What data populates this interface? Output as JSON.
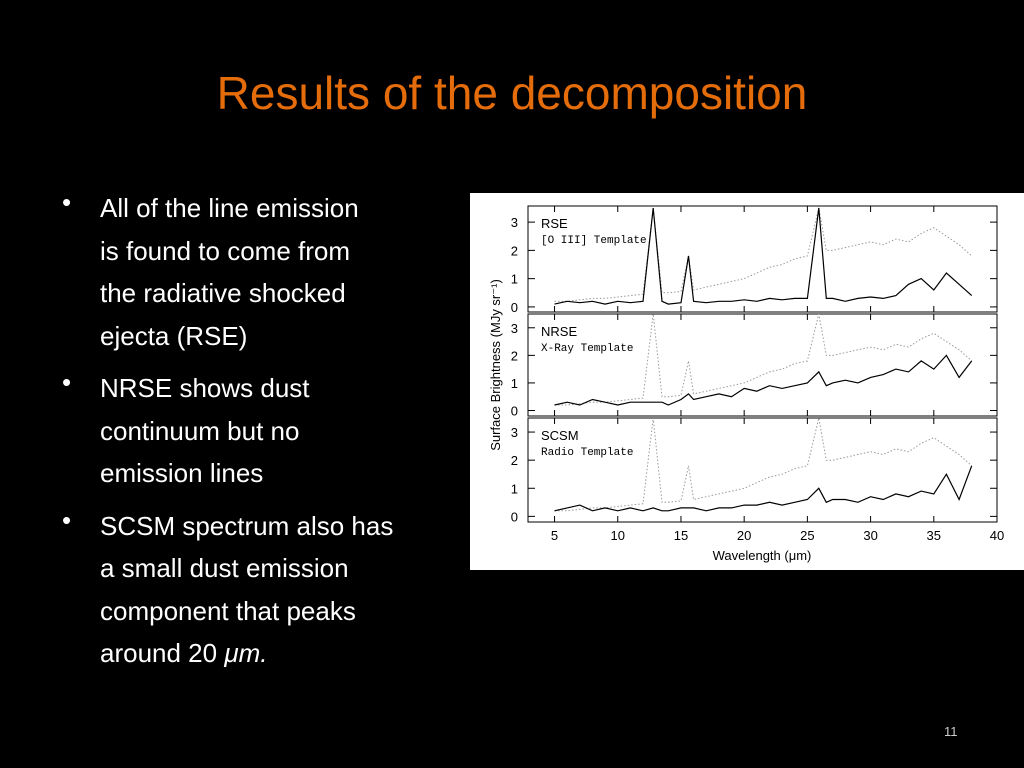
{
  "header": {
    "title": "Results of the decomposition"
  },
  "bullets": [
    {
      "lines": [
        "All of the line emission",
        "is found to come from",
        "the radiative shocked",
        "ejecta (RSE)"
      ]
    },
    {
      "lines": [
        "NRSE shows dust",
        "continuum but no",
        "emission lines"
      ]
    },
    {
      "lines": [
        "SCSM spectrum also has",
        "a small dust emission",
        "component that peaks",
        "around 20 "
      ],
      "emphasis": "μm."
    }
  ],
  "page_number": "11",
  "chart_data": {
    "type": "line",
    "x_label": "Wavelength (μm)",
    "y_label": "Surface Brightness (MJy sr⁻¹)",
    "xlim": [
      2.9,
      40
    ],
    "xticks": [
      5,
      10,
      15,
      20,
      25,
      30,
      35,
      40
    ],
    "x": [
      5,
      6,
      7,
      8,
      9,
      10,
      11,
      12,
      12.8,
      13.5,
      14,
      15,
      15.6,
      16,
      17,
      18,
      19,
      20,
      21,
      22,
      23,
      24,
      25,
      25.9,
      26.5,
      27,
      28,
      29,
      30,
      31,
      32,
      33,
      34,
      35,
      36,
      37,
      38
    ],
    "panels": [
      {
        "title": "RSE",
        "subtitle": "[O III] Template",
        "ylim": [
          -0.18,
          3.57
        ],
        "yticks": [
          0,
          1,
          2,
          3
        ],
        "series": [
          {
            "color": "#999999",
            "values": [
              0.2,
              0.2,
              0.25,
              0.3,
              0.3,
              0.35,
              0.4,
              0.45,
              3.5,
              0.5,
              0.5,
              0.55,
              1.8,
              0.6,
              0.7,
              0.8,
              0.9,
              1.0,
              1.2,
              1.4,
              1.5,
              1.7,
              1.8,
              3.5,
              2.0,
              2.0,
              2.1,
              2.2,
              2.3,
              2.2,
              2.4,
              2.3,
              2.6,
              2.8,
              2.5,
              2.2,
              1.8
            ]
          },
          {
            "color": "#000000",
            "values": [
              0.1,
              0.2,
              0.15,
              0.2,
              0.1,
              0.2,
              0.15,
              0.2,
              3.5,
              0.2,
              0.1,
              0.15,
              1.8,
              0.2,
              0.15,
              0.2,
              0.2,
              0.25,
              0.2,
              0.3,
              0.25,
              0.3,
              0.3,
              3.5,
              0.3,
              0.3,
              0.2,
              0.3,
              0.35,
              0.3,
              0.4,
              0.8,
              1.0,
              0.6,
              1.2,
              0.8,
              0.4
            ]
          }
        ]
      },
      {
        "title": "NRSE",
        "subtitle": "X-Ray Template",
        "ylim": [
          -0.2,
          3.5
        ],
        "yticks": [
          0,
          1,
          2,
          3
        ],
        "series": [
          {
            "color": "#999999",
            "values": [
              0.2,
              0.2,
              0.25,
              0.3,
              0.3,
              0.35,
              0.4,
              0.45,
              3.5,
              0.5,
              0.5,
              0.55,
              1.8,
              0.6,
              0.7,
              0.8,
              0.9,
              1.0,
              1.2,
              1.4,
              1.5,
              1.7,
              1.8,
              3.5,
              2.0,
              2.0,
              2.1,
              2.2,
              2.3,
              2.2,
              2.4,
              2.3,
              2.6,
              2.8,
              2.5,
              2.2,
              1.8
            ]
          },
          {
            "color": "#000000",
            "values": [
              0.2,
              0.3,
              0.2,
              0.4,
              0.3,
              0.2,
              0.3,
              0.3,
              0.3,
              0.3,
              0.2,
              0.4,
              0.6,
              0.4,
              0.5,
              0.6,
              0.5,
              0.8,
              0.7,
              0.9,
              0.8,
              0.9,
              1.0,
              1.4,
              0.9,
              1.0,
              1.1,
              1.0,
              1.2,
              1.3,
              1.5,
              1.4,
              1.8,
              1.5,
              2.0,
              1.2,
              1.8
            ]
          }
        ]
      },
      {
        "title": "SCSM",
        "subtitle": "Radio Template",
        "ylim": [
          -0.2,
          3.5
        ],
        "yticks": [
          0,
          1,
          2,
          3
        ],
        "series": [
          {
            "color": "#999999",
            "values": [
              0.2,
              0.2,
              0.25,
              0.3,
              0.3,
              0.35,
              0.4,
              0.45,
              3.5,
              0.5,
              0.5,
              0.55,
              1.8,
              0.6,
              0.7,
              0.8,
              0.9,
              1.0,
              1.2,
              1.4,
              1.5,
              1.7,
              1.8,
              3.5,
              2.0,
              2.0,
              2.1,
              2.2,
              2.3,
              2.2,
              2.4,
              2.3,
              2.6,
              2.8,
              2.5,
              2.2,
              1.8
            ]
          },
          {
            "color": "#000000",
            "values": [
              0.2,
              0.3,
              0.4,
              0.2,
              0.3,
              0.2,
              0.3,
              0.2,
              0.3,
              0.2,
              0.2,
              0.3,
              0.3,
              0.3,
              0.2,
              0.3,
              0.3,
              0.4,
              0.4,
              0.5,
              0.4,
              0.5,
              0.6,
              1.0,
              0.5,
              0.6,
              0.6,
              0.5,
              0.7,
              0.6,
              0.8,
              0.7,
              0.9,
              0.8,
              1.5,
              0.6,
              1.8
            ]
          }
        ]
      }
    ]
  }
}
